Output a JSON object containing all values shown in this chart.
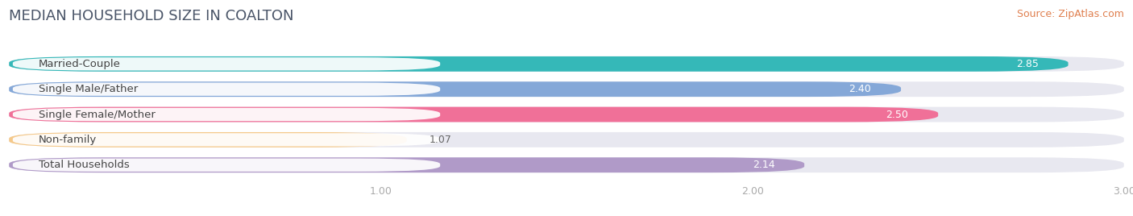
{
  "title": "MEDIAN HOUSEHOLD SIZE IN COALTON",
  "source": "Source: ZipAtlas.com",
  "categories": [
    "Married-Couple",
    "Single Male/Father",
    "Single Female/Mother",
    "Non-family",
    "Total Households"
  ],
  "values": [
    2.85,
    2.4,
    2.5,
    1.07,
    2.14
  ],
  "bar_colors": [
    "#35b8b8",
    "#85a8d8",
    "#f07098",
    "#f5c98a",
    "#b09ac8"
  ],
  "background_color": "#ffffff",
  "bar_bg_color": "#e8e8f0",
  "xlim": [
    0,
    3.0
  ],
  "xticks": [
    1.0,
    2.0,
    3.0
  ],
  "title_fontsize": 13,
  "source_fontsize": 9,
  "label_fontsize": 9.5,
  "value_fontsize": 9
}
